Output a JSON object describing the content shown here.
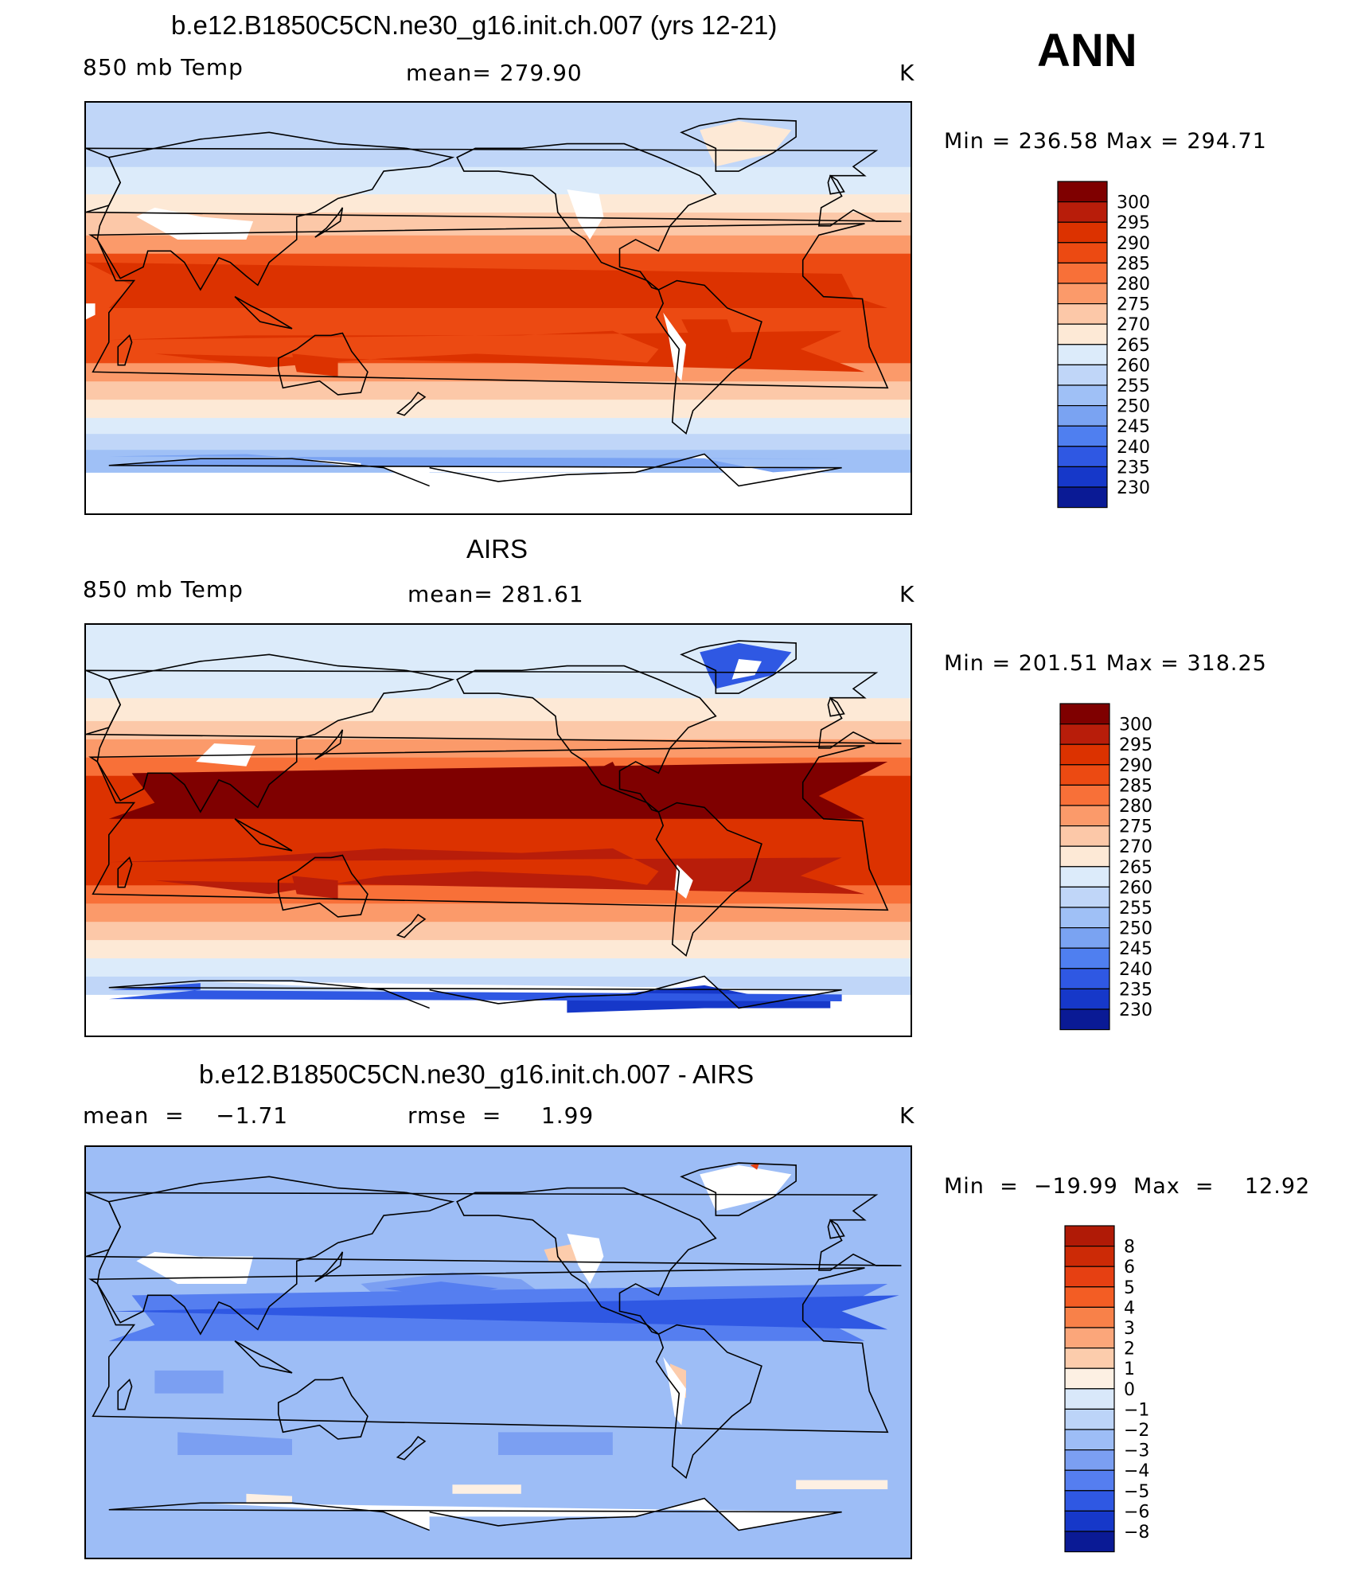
{
  "figure_label": "ANN",
  "panels": [
    {
      "title": "b.e12.B1850C5CN.ne30_g16.init.ch.007 (yrs 12-21)",
      "left_label": "850 mb Temp",
      "center_label": "mean=  279.90",
      "units": "K",
      "range_label": "Min  =  236.58  Max  =  294.71",
      "field": "model",
      "colorbar_levels": [
        "300",
        "295",
        "290",
        "285",
        "280",
        "275",
        "270",
        "265",
        "260",
        "255",
        "250",
        "245",
        "240",
        "235",
        "230"
      ],
      "colorbar_colors": [
        "#7f0000",
        "#b81d0a",
        "#dc3200",
        "#ec4a12",
        "#f87038",
        "#fb9a6a",
        "#fcc8a8",
        "#fde9d6",
        "#dcebfa",
        "#c0d6f8",
        "#9fc0f6",
        "#7aa3f2",
        "#4f7ff0",
        "#2f58e3",
        "#1638c9",
        "#0a1a95"
      ]
    },
    {
      "title": "AIRS",
      "left_label": "850 mb Temp",
      "center_label": "mean=  281.61",
      "units": "K",
      "range_label": "Min  =  201.51  Max  =  318.25",
      "field": "obs",
      "colorbar_levels": [
        "300",
        "295",
        "290",
        "285",
        "280",
        "275",
        "270",
        "265",
        "260",
        "255",
        "250",
        "245",
        "240",
        "235",
        "230"
      ],
      "colorbar_colors": [
        "#7f0000",
        "#b81d0a",
        "#dc3200",
        "#ec4a12",
        "#f87038",
        "#fb9a6a",
        "#fcc8a8",
        "#fde9d6",
        "#dcebfa",
        "#c0d6f8",
        "#9fc0f6",
        "#7aa3f2",
        "#4f7ff0",
        "#2f58e3",
        "#1638c9",
        "#0a1a95"
      ]
    },
    {
      "title": "b.e12.B1850C5CN.ne30_g16.init.ch.007 - AIRS",
      "left_label": "mean  =    −1.71",
      "center_label": "rmse  =     1.99",
      "units": "K",
      "range_label": "Min  =  −19.99  Max  =    12.92",
      "field": "diff",
      "colorbar_levels": [
        "8",
        "6",
        "5",
        "4",
        "3",
        "2",
        "1",
        "0",
        "−1",
        "−2",
        "−3",
        "−4",
        "−5",
        "−6",
        "−8"
      ],
      "colorbar_colors": [
        "#b01a06",
        "#cc2a06",
        "#e64012",
        "#f35d24",
        "#f88149",
        "#fba67a",
        "#fcccac",
        "#fdf0e3",
        "#d9e8fa",
        "#bcd4f8",
        "#9dbdf6",
        "#7b9ff2",
        "#557ef0",
        "#2f58e3",
        "#1638c9",
        "#0a1a95"
      ]
    }
  ]
}
